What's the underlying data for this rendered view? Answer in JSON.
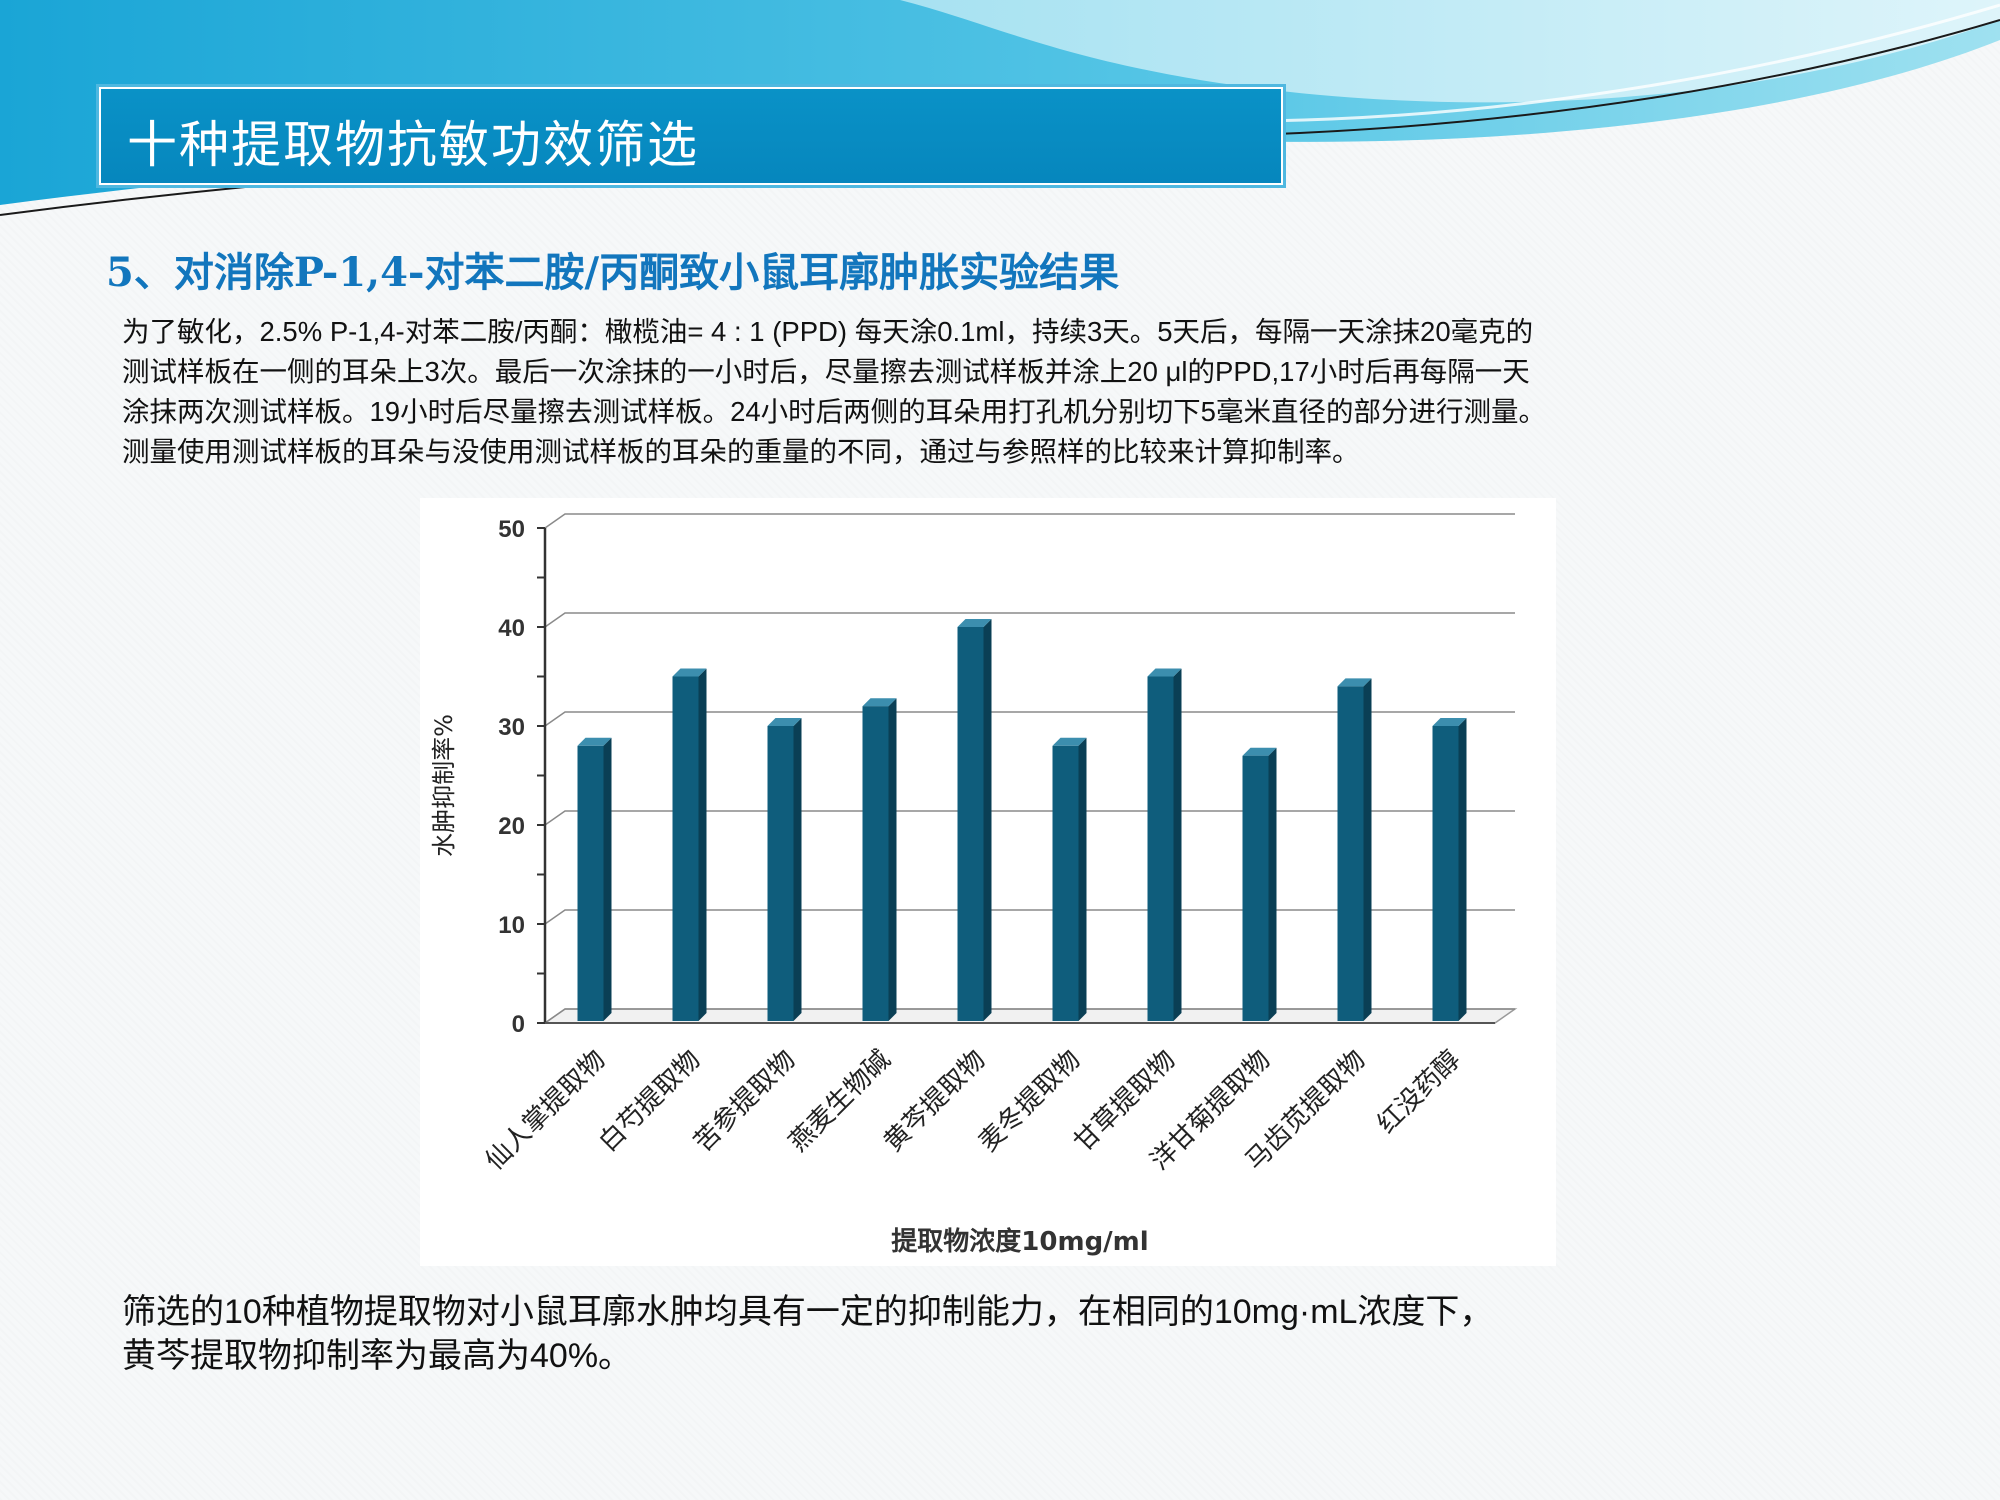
{
  "slide": {
    "title": "十种提取物抗敏功效筛选",
    "subtitle": "5、对消除P-1,4-对苯二胺/丙酮致小鼠耳廓肿胀实验结果",
    "intro_lines": [
      "为了敏化，2.5% P-1,4-对苯二胺/丙酮：橄榄油= 4 : 1 (PPD) 每天涂0.1ml，持续3天。5天后，每隔一天涂抹20毫克的",
      "测试样板在一侧的耳朵上3次。最后一次涂抹的一小时后，尽量擦去测试样板并涂上20 μl的PPD,17小时后再每隔一天",
      "涂抹两次测试样板。19小时后尽量擦去测试样板。24小时后两侧的耳朵用打孔机分别切下5毫米直径的部分进行测量。",
      "测量使用测试样板的耳朵与没使用测试样板的耳朵的重量的不同，通过与参照样的比较来计算抑制率。"
    ],
    "conclusion_lines": [
      "筛选的10种植物提取物对小鼠耳廓水肿均具有一定的抑制能力，在相同的10mg·mL浓度下，",
      "黄芩提取物抑制率为最高为40%。"
    ]
  },
  "colors": {
    "title_bg": "#0789c0",
    "subtitle": "#1276bd",
    "bar_front": "#0f5d7c",
    "bar_side": "#0a3f55",
    "bar_top": "#3c8eae"
  },
  "chart_data": {
    "type": "bar",
    "categories": [
      "仙人掌提取物",
      "白芍提取物",
      "苦参提取物",
      "燕麦生物碱",
      "黄芩提取物",
      "麦冬提取物",
      "甘草提取物",
      "洋甘菊提取物",
      "马齿苋提取物",
      "红没药醇"
    ],
    "values": [
      28,
      35,
      30,
      32,
      40,
      28,
      35,
      27,
      34,
      30
    ],
    "title": "",
    "xlabel": "提取物浓度10mg/ml",
    "ylabel": "水肿抑制率%",
    "ylim": [
      0,
      50
    ],
    "yticks": [
      0,
      10,
      20,
      30,
      40,
      50
    ],
    "grid": true,
    "style": "3d-column"
  }
}
